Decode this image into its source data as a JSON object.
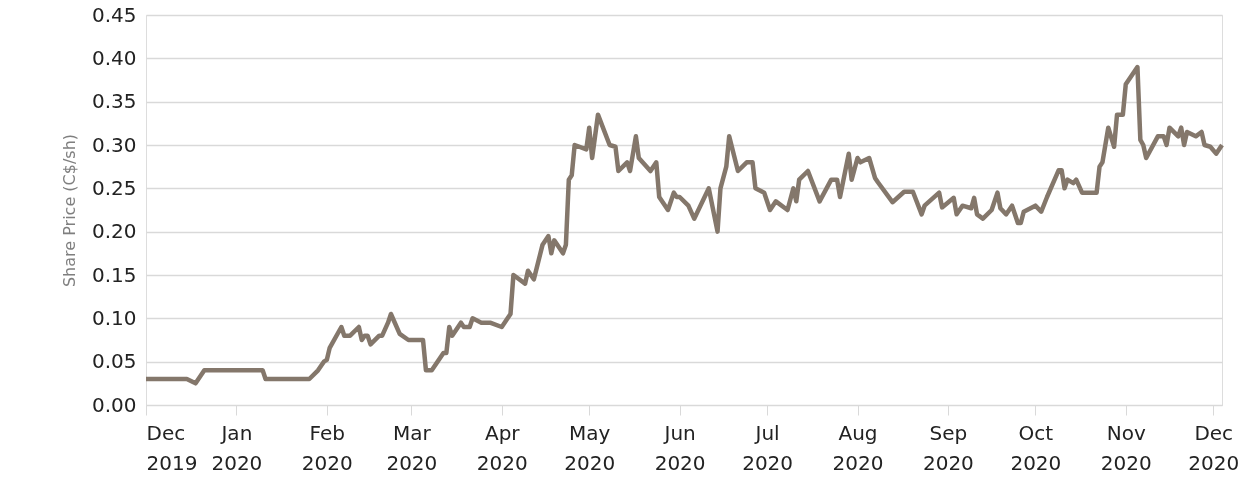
{
  "chart_data": {
    "type": "line",
    "ylabel": "Share Price (C$/sh)",
    "x": [
      "2019-12-01",
      "2019-12-15",
      "2019-12-18",
      "2019-12-21",
      "2020-01-10",
      "2020-01-11",
      "2020-01-26",
      "2020-01-29",
      "2020-01-31",
      "2020-02-01",
      "2020-02-02",
      "2020-02-06",
      "2020-02-07",
      "2020-02-09",
      "2020-02-12",
      "2020-02-13",
      "2020-02-14",
      "2020-02-15",
      "2020-02-16",
      "2020-02-19",
      "2020-02-20",
      "2020-02-22",
      "2020-02-23",
      "2020-02-26",
      "2020-02-29",
      "2020-03-05",
      "2020-03-06",
      "2020-03-08",
      "2020-03-12",
      "2020-03-13",
      "2020-03-14",
      "2020-03-15",
      "2020-03-18",
      "2020-03-19",
      "2020-03-21",
      "2020-03-22",
      "2020-03-25",
      "2020-03-28",
      "2020-04-01",
      "2020-04-03",
      "2020-04-04",
      "2020-04-05",
      "2020-04-09",
      "2020-04-10",
      "2020-04-12",
      "2020-04-15",
      "2020-04-17",
      "2020-04-18",
      "2020-04-19",
      "2020-04-22",
      "2020-04-23",
      "2020-04-24",
      "2020-04-25",
      "2020-04-26",
      "2020-04-30",
      "2020-05-01",
      "2020-05-02",
      "2020-05-04",
      "2020-05-08",
      "2020-05-10",
      "2020-05-11",
      "2020-05-14",
      "2020-05-15",
      "2020-05-17",
      "2020-05-18",
      "2020-05-22",
      "2020-05-24",
      "2020-05-25",
      "2020-05-28",
      "2020-05-30",
      "2020-05-31",
      "2020-06-01",
      "2020-06-04",
      "2020-06-06",
      "2020-06-11",
      "2020-06-14",
      "2020-06-15",
      "2020-06-17",
      "2020-06-18",
      "2020-06-21",
      "2020-06-24",
      "2020-06-26",
      "2020-06-27",
      "2020-06-30",
      "2020-07-02",
      "2020-07-04",
      "2020-07-08",
      "2020-07-10",
      "2020-07-11",
      "2020-07-12",
      "2020-07-15",
      "2020-07-19",
      "2020-07-23",
      "2020-07-25",
      "2020-07-26",
      "2020-07-29",
      "2020-07-30",
      "2020-08-01",
      "2020-08-02",
      "2020-08-05",
      "2020-08-07",
      "2020-08-08",
      "2020-08-13",
      "2020-08-15",
      "2020-08-17",
      "2020-08-20",
      "2020-08-23",
      "2020-08-24",
      "2020-08-29",
      "2020-08-30",
      "2020-09-03",
      "2020-09-04",
      "2020-09-06",
      "2020-09-09",
      "2020-09-10",
      "2020-09-11",
      "2020-09-13",
      "2020-09-16",
      "2020-09-18",
      "2020-09-19",
      "2020-09-21",
      "2020-09-23",
      "2020-09-25",
      "2020-09-26",
      "2020-09-27",
      "2020-10-01",
      "2020-10-03",
      "2020-10-05",
      "2020-10-09",
      "2020-10-10",
      "2020-10-11",
      "2020-10-12",
      "2020-10-14",
      "2020-10-15",
      "2020-10-17",
      "2020-10-22",
      "2020-10-23",
      "2020-10-24",
      "2020-10-26",
      "2020-10-28",
      "2020-10-29",
      "2020-10-31",
      "2020-11-01",
      "2020-11-05",
      "2020-11-06",
      "2020-11-07",
      "2020-11-08",
      "2020-11-12",
      "2020-11-14",
      "2020-11-15",
      "2020-11-16",
      "2020-11-19",
      "2020-11-20",
      "2020-11-21",
      "2020-11-22",
      "2020-11-25",
      "2020-11-27",
      "2020-11-28",
      "2020-11-30",
      "2020-12-02",
      "2020-12-04"
    ],
    "series": [
      {
        "color": "#84776b",
        "values": [
          0.03,
          0.03,
          0.025,
          0.04,
          0.04,
          0.03,
          0.03,
          0.04,
          0.05,
          0.052,
          0.066,
          0.09,
          0.08,
          0.08,
          0.09,
          0.075,
          0.08,
          0.08,
          0.07,
          0.08,
          0.08,
          0.095,
          0.105,
          0.082,
          0.075,
          0.075,
          0.04,
          0.04,
          0.06,
          0.06,
          0.09,
          0.08,
          0.095,
          0.09,
          0.09,
          0.1,
          0.095,
          0.095,
          0.09,
          0.1,
          0.105,
          0.15,
          0.14,
          0.155,
          0.145,
          0.185,
          0.195,
          0.175,
          0.19,
          0.175,
          0.185,
          0.26,
          0.265,
          0.3,
          0.295,
          0.32,
          0.285,
          0.335,
          0.3,
          0.298,
          0.27,
          0.28,
          0.27,
          0.31,
          0.285,
          0.27,
          0.28,
          0.24,
          0.225,
          0.245,
          0.24,
          0.24,
          0.23,
          0.215,
          0.25,
          0.2,
          0.25,
          0.275,
          0.31,
          0.27,
          0.28,
          0.28,
          0.25,
          0.245,
          0.225,
          0.235,
          0.225,
          0.25,
          0.235,
          0.26,
          0.27,
          0.235,
          0.26,
          0.26,
          0.24,
          0.29,
          0.26,
          0.285,
          0.28,
          0.285,
          0.262,
          0.257,
          0.234,
          0.24,
          0.246,
          0.246,
          0.22,
          0.23,
          0.245,
          0.228,
          0.239,
          0.22,
          0.23,
          0.227,
          0.239,
          0.22,
          0.215,
          0.225,
          0.245,
          0.227,
          0.22,
          0.23,
          0.21,
          0.21,
          0.223,
          0.23,
          0.223,
          0.24,
          0.271,
          0.271,
          0.25,
          0.26,
          0.256,
          0.26,
          0.245,
          0.245,
          0.275,
          0.28,
          0.32,
          0.298,
          0.335,
          0.335,
          0.37,
          0.39,
          0.306,
          0.3,
          0.285,
          0.31,
          0.31,
          0.3,
          0.32,
          0.31,
          0.32,
          0.3,
          0.315,
          0.31,
          0.315,
          0.3,
          0.298,
          0.29,
          0.3
        ]
      }
    ],
    "xlim": [
      "2019-12-01",
      "2020-12-04"
    ],
    "xticks": [
      {
        "value": "2019-12-01",
        "label": "Dec 2019"
      },
      {
        "value": "2020-01-01",
        "label": "Jan 2020"
      },
      {
        "value": "2020-02-01",
        "label": "Feb 2020"
      },
      {
        "value": "2020-03-01",
        "label": "Mar 2020"
      },
      {
        "value": "2020-04-01",
        "label": "Apr 2020"
      },
      {
        "value": "2020-05-01",
        "label": "May 2020"
      },
      {
        "value": "2020-06-01",
        "label": "Jun 2020"
      },
      {
        "value": "2020-07-01",
        "label": "Jul 2020"
      },
      {
        "value": "2020-08-01",
        "label": "Aug 2020"
      },
      {
        "value": "2020-09-01",
        "label": "Sep 2020"
      },
      {
        "value": "2020-10-01",
        "label": "Oct 2020"
      },
      {
        "value": "2020-11-01",
        "label": "Nov 2020"
      },
      {
        "value": "2020-12-01",
        "label": "Dec 2020"
      }
    ],
    "ylim": [
      0,
      0.45
    ],
    "yticks": [
      {
        "value": 0,
        "label": "0.00"
      },
      {
        "value": 0.05,
        "label": "0.05"
      },
      {
        "value": 0.1,
        "label": "0.10"
      },
      {
        "value": 0.15,
        "label": "0.15"
      },
      {
        "value": 0.2,
        "label": "0.20"
      },
      {
        "value": 0.25,
        "label": "0.25"
      },
      {
        "value": 0.3,
        "label": "0.30"
      },
      {
        "value": 0.35,
        "label": "0.35"
      },
      {
        "value": 0.4,
        "label": "0.40"
      },
      {
        "value": 0.45,
        "label": "0.45"
      }
    ],
    "grid": "y",
    "marker": "none",
    "line_style": "solid"
  }
}
